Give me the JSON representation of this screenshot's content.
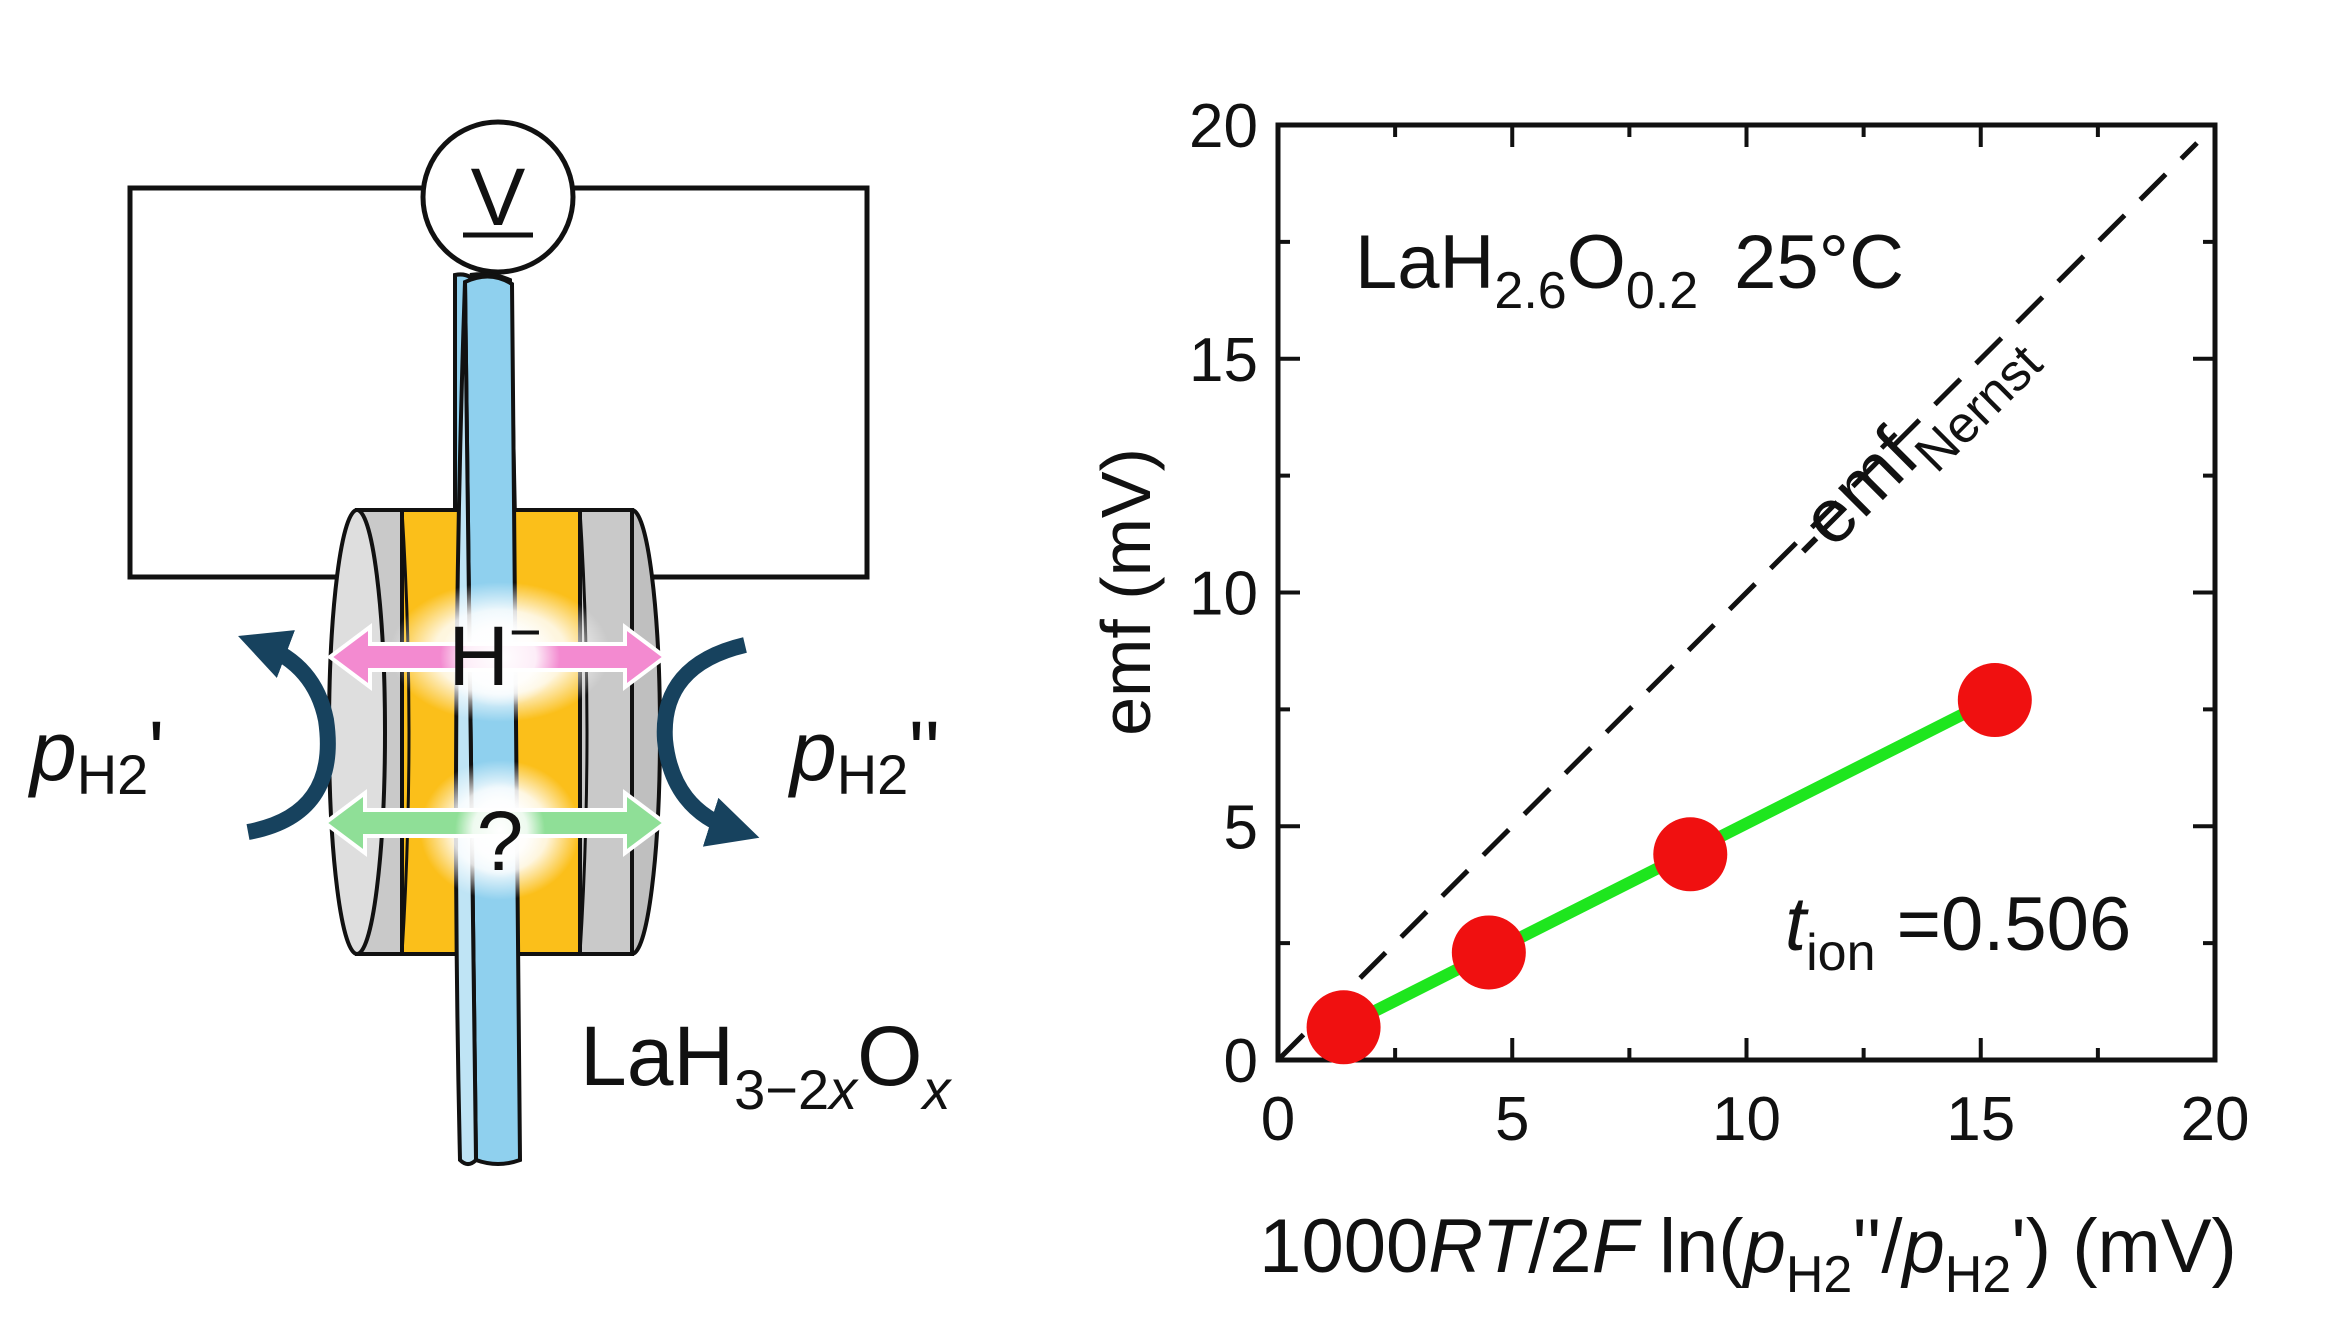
{
  "cell": {
    "voltmeter_symbol": "V",
    "ion_label_main": "H",
    "ion_label_charge": "−",
    "unknown_carrier_label": "?",
    "left_pressure": {
      "p": "p",
      "sub": "H2",
      "prime": "'"
    },
    "right_pressure": {
      "p": "p",
      "sub": "H2",
      "prime": "''"
    },
    "material": {
      "base": "LaH",
      "sub1": "3−2",
      "sub1_var": "x",
      "mid": "O",
      "sub2_var": "x"
    }
  },
  "colors": {
    "hydride_arrow": "#f38ad0",
    "unknown_arrow": "#8fdf97",
    "electrolyte": "#fbbf1a",
    "electrode": "#c9c9c9",
    "membrane": "#8fd0ee",
    "gas_arrow": "#17425e",
    "fit_line": "#1ee61e",
    "data_point": "#f01010"
  },
  "chart_data": {
    "type": "scatter",
    "title": "",
    "xlabel": {
      "pre": "1000",
      "RT": "RT",
      "mid": "/2",
      "F": "F",
      "ln": " ln(",
      "p1": "p",
      "sub1": "H2",
      "q1": "''/",
      "p2": "p",
      "sub2": "H2",
      "q2": "') (mV)"
    },
    "ylabel": "emf (mV)",
    "xlim": [
      0,
      20
    ],
    "ylim": [
      0,
      20
    ],
    "x_ticks": [
      "0",
      "5",
      "10",
      "15",
      "20"
    ],
    "y_ticks": [
      "0",
      "5",
      "10",
      "15",
      "20"
    ],
    "grid": false,
    "annotation_sample": {
      "base": "LaH",
      "sub1": "2.6",
      "mid": "O",
      "sub2": "0.2",
      "temp": "25°C"
    },
    "annotation_nernst": {
      "main": "-emf",
      "sub": "Nernst"
    },
    "annotation_tion": {
      "t": "t",
      "sub": "ion",
      "value": " =0.506"
    },
    "series": [
      {
        "x": [
          1.4,
          4.5,
          8.8,
          15.3
        ],
        "y": [
          0.7,
          2.3,
          4.4,
          7.7
        ]
      }
    ],
    "nernst_line": {
      "x": [
        0,
        20
      ],
      "y": [
        0,
        20
      ]
    },
    "fit_line": {
      "x": [
        1.4,
        15.3
      ],
      "y": [
        0.71,
        7.74
      ],
      "slope": 0.506
    }
  }
}
